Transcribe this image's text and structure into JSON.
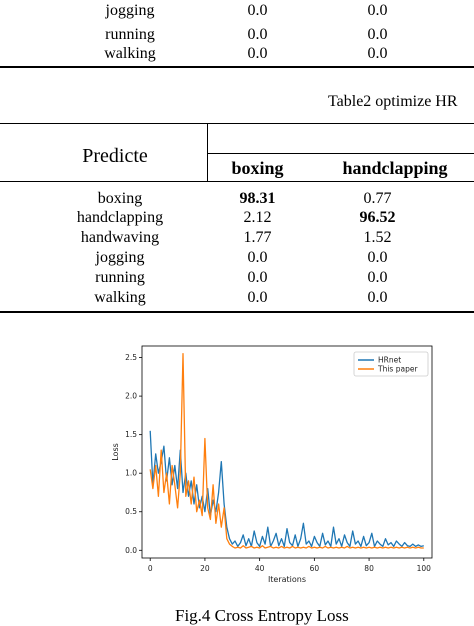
{
  "table1": {
    "rows": [
      {
        "label": "jogging",
        "v1": "0.0",
        "v2": "0.0"
      },
      {
        "label": "running",
        "v1": "0.0",
        "v2": "0.0"
      },
      {
        "label": "walking",
        "v1": "0.0",
        "v2": "0.0"
      }
    ]
  },
  "table2": {
    "caption": "Table2 optimize HR",
    "row_header": "Predicte",
    "col1": "boxing",
    "col2": "handclapping",
    "rows": [
      {
        "label": "boxing",
        "v1": "98.31",
        "v2": "0.77"
      },
      {
        "label": "handclapping",
        "v1": "2.12",
        "v2": "96.52"
      },
      {
        "label": "handwaving",
        "v1": "1.77",
        "v2": "1.52"
      },
      {
        "label": "jogging",
        "v1": "0.0",
        "v2": "0.0"
      },
      {
        "label": "running",
        "v1": "0.0",
        "v2": "0.0"
      },
      {
        "label": "walking",
        "v1": "0.0",
        "v2": "0.0"
      }
    ]
  },
  "figure": {
    "caption": "Fig.4 Cross Entropy Loss"
  },
  "chart_data": {
    "type": "line",
    "xlabel": "Iterations",
    "ylabel": "Loss",
    "xlim": [
      -3,
      103
    ],
    "ylim": [
      -0.1,
      2.65
    ],
    "xticks": [
      "0",
      "20",
      "40",
      "60",
      "80",
      "100"
    ],
    "yticks": [
      "0.0",
      "0.5",
      "1.0",
      "1.5",
      "2.0",
      "2.5"
    ],
    "legend": "top-right",
    "series": [
      {
        "name": "HRnet",
        "color": "#1f77b4",
        "x": [
          0,
          1,
          2,
          3,
          4,
          5,
          6,
          7,
          8,
          9,
          10,
          11,
          12,
          13,
          14,
          15,
          16,
          17,
          18,
          19,
          20,
          21,
          22,
          23,
          24,
          25,
          26,
          27,
          28,
          29,
          30,
          31,
          32,
          33,
          34,
          35,
          36,
          37,
          38,
          39,
          40,
          41,
          42,
          43,
          44,
          45,
          46,
          47,
          48,
          49,
          50,
          51,
          52,
          53,
          54,
          55,
          56,
          57,
          58,
          59,
          60,
          61,
          62,
          63,
          64,
          65,
          66,
          67,
          68,
          69,
          70,
          71,
          72,
          73,
          74,
          75,
          76,
          77,
          78,
          79,
          80,
          81,
          82,
          83,
          84,
          85,
          86,
          87,
          88,
          89,
          90,
          91,
          92,
          93,
          94,
          95,
          96,
          97,
          98,
          99,
          100
        ],
        "y": [
          1.55,
          0.85,
          1.25,
          1.0,
          1.15,
          1.35,
          0.9,
          1.2,
          0.85,
          1.1,
          0.8,
          1.3,
          0.75,
          1.0,
          0.7,
          0.9,
          0.6,
          0.85,
          0.55,
          0.7,
          0.5,
          0.8,
          0.45,
          0.65,
          0.5,
          0.75,
          1.15,
          0.6,
          0.3,
          0.15,
          0.08,
          0.12,
          0.05,
          0.1,
          0.2,
          0.06,
          0.15,
          0.05,
          0.25,
          0.1,
          0.05,
          0.18,
          0.08,
          0.3,
          0.05,
          0.12,
          0.22,
          0.06,
          0.15,
          0.05,
          0.28,
          0.1,
          0.06,
          0.2,
          0.05,
          0.15,
          0.35,
          0.08,
          0.12,
          0.05,
          0.18,
          0.1,
          0.05,
          0.22,
          0.07,
          0.12,
          0.05,
          0.3,
          0.08,
          0.15,
          0.05,
          0.2,
          0.1,
          0.05,
          0.25,
          0.08,
          0.12,
          0.05,
          0.18,
          0.06,
          0.1,
          0.22,
          0.05,
          0.12,
          0.08,
          0.05,
          0.15,
          0.07,
          0.1,
          0.05,
          0.12,
          0.08,
          0.05,
          0.1,
          0.06,
          0.05,
          0.08,
          0.05,
          0.07,
          0.05,
          0.06
        ]
      },
      {
        "name": "This paper",
        "color": "#ff7f0e",
        "x": [
          0,
          1,
          2,
          3,
          4,
          5,
          6,
          7,
          8,
          9,
          10,
          11,
          12,
          13,
          14,
          15,
          16,
          17,
          18,
          19,
          20,
          21,
          22,
          23,
          24,
          25,
          26,
          27,
          28,
          29,
          30,
          31,
          32,
          33,
          34,
          35,
          36,
          37,
          38,
          39,
          40,
          41,
          42,
          43,
          44,
          45,
          46,
          47,
          48,
          49,
          50,
          51,
          52,
          53,
          54,
          55,
          56,
          57,
          58,
          59,
          60,
          61,
          62,
          63,
          64,
          65,
          66,
          67,
          68,
          69,
          70,
          71,
          72,
          73,
          74,
          75,
          76,
          77,
          78,
          79,
          80,
          81,
          82,
          83,
          84,
          85,
          86,
          87,
          88,
          89,
          90,
          91,
          92,
          93,
          94,
          95,
          96,
          97,
          98,
          99,
          100
        ],
        "y": [
          1.05,
          0.8,
          1.1,
          0.7,
          1.3,
          0.75,
          1.0,
          0.6,
          1.1,
          0.85,
          0.55,
          1.0,
          2.55,
          0.7,
          0.9,
          0.6,
          0.95,
          0.5,
          0.65,
          0.45,
          1.45,
          0.55,
          0.4,
          0.85,
          0.35,
          0.6,
          0.3,
          0.55,
          0.15,
          0.08,
          0.05,
          0.03,
          0.04,
          0.03,
          0.06,
          0.03,
          0.04,
          0.05,
          0.03,
          0.04,
          0.03,
          0.06,
          0.03,
          0.04,
          0.05,
          0.03,
          0.04,
          0.03,
          0.05,
          0.03,
          0.04,
          0.03,
          0.05,
          0.03,
          0.04,
          0.03,
          0.04,
          0.03,
          0.05,
          0.03,
          0.04,
          0.03,
          0.04,
          0.03,
          0.05,
          0.03,
          0.04,
          0.03,
          0.04,
          0.03,
          0.04,
          0.03,
          0.05,
          0.03,
          0.04,
          0.03,
          0.04,
          0.03,
          0.04,
          0.03,
          0.04,
          0.03,
          0.04,
          0.03,
          0.04,
          0.03,
          0.04,
          0.03,
          0.04,
          0.03,
          0.04,
          0.03,
          0.04,
          0.03,
          0.04,
          0.03,
          0.04,
          0.03,
          0.04,
          0.03,
          0.03
        ]
      }
    ]
  },
  "colors": {
    "series1": "#1f77b4",
    "series2": "#ff7f0e"
  }
}
